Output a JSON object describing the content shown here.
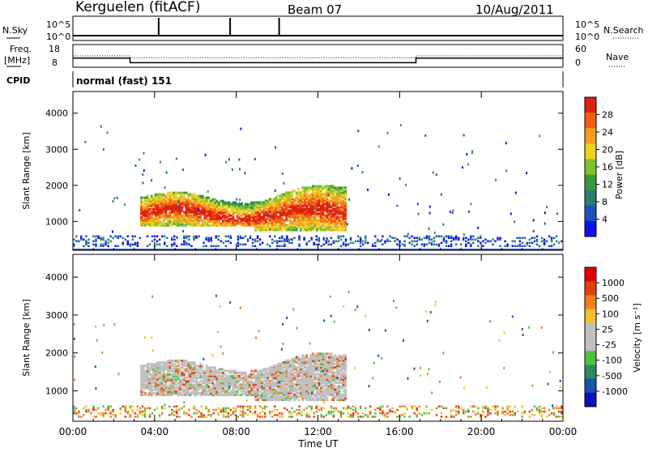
{
  "header": {
    "station": "Kerguelen (fitACF)",
    "beam": "Beam 07",
    "date": "10/Aug/2011"
  },
  "strip_labels": {
    "nsky": "N.Sky",
    "nsky_ticks": [
      "10^5",
      "10^0"
    ],
    "nsearch": "N.Search",
    "freq": "Freq.",
    "freq_unit": "[MHz]",
    "freq_ticks": [
      "18",
      "8"
    ],
    "nave": "Nave",
    "nave_ticks": [
      "60",
      "0"
    ],
    "cpid": "CPID",
    "cpid_value": "normal (fast) 151"
  },
  "colors": {
    "power_scale": [
      "#1010f0",
      "#2050c0",
      "#2e7d6e",
      "#3a9a3a",
      "#7fc030",
      "#f0d020",
      "#f0a020",
      "#f06010",
      "#e02010"
    ],
    "velocity_scale": [
      "#1010c0",
      "#2050b0",
      "#2e8a5a",
      "#50c040",
      "#c0c0c0",
      "#c0c0c0",
      "#f0c030",
      "#f08020",
      "#e04010",
      "#e00000"
    ]
  },
  "chart_data": [
    {
      "type": "heatmap",
      "panel": "power",
      "xlabel": "Time UT",
      "ylabel": "Slant Range [km]",
      "xlim": [
        0,
        24
      ],
      "ylim": [
        200,
        4600
      ],
      "x_tick_labels": [
        "00:00",
        "04:00",
        "08:00",
        "12:00",
        "16:00",
        "20:00",
        "00:00"
      ],
      "y_tick_labels": [
        "1000",
        "2000",
        "3000",
        "4000"
      ],
      "colorbar_label": "Power [dB]",
      "colorbar_ticks": [
        "4",
        "8",
        "12",
        "16",
        "20",
        "24",
        "28"
      ],
      "echo_region": {
        "time_start": 3.3,
        "time_end": 13.3,
        "range_low": 800,
        "range_high": 1800,
        "peak_power": 28
      },
      "near_range_band": {
        "range_low": 300,
        "range_high": 600
      }
    },
    {
      "type": "heatmap",
      "panel": "velocity",
      "xlabel": "Time UT",
      "ylabel": "Slant Range [km]",
      "xlim": [
        0,
        24
      ],
      "ylim": [
        200,
        4600
      ],
      "x_tick_labels": [
        "00:00",
        "04:00",
        "08:00",
        "12:00",
        "16:00",
        "20:00",
        "00:00"
      ],
      "y_tick_labels": [
        "1000",
        "2000",
        "3000",
        "4000"
      ],
      "colorbar_label": "Velocity [m s⁻¹]",
      "colorbar_ticks": [
        "1000",
        "500",
        "100",
        "25",
        "-25",
        "-100",
        "-500",
        "-1000"
      ]
    }
  ],
  "nsky_series": {
    "baseline": 4,
    "spikes_hours": [
      4.2,
      7.7,
      10.1
    ]
  },
  "freq_series": {
    "segments": [
      [
        0,
        2.8,
        12
      ],
      [
        2.8,
        16.8,
        10
      ],
      [
        16.8,
        24,
        12
      ]
    ]
  },
  "nave_series": {
    "segments": [
      [
        0,
        2.8,
        30
      ],
      [
        2.8,
        16.8,
        25
      ],
      [
        16.8,
        24,
        30
      ]
    ]
  }
}
